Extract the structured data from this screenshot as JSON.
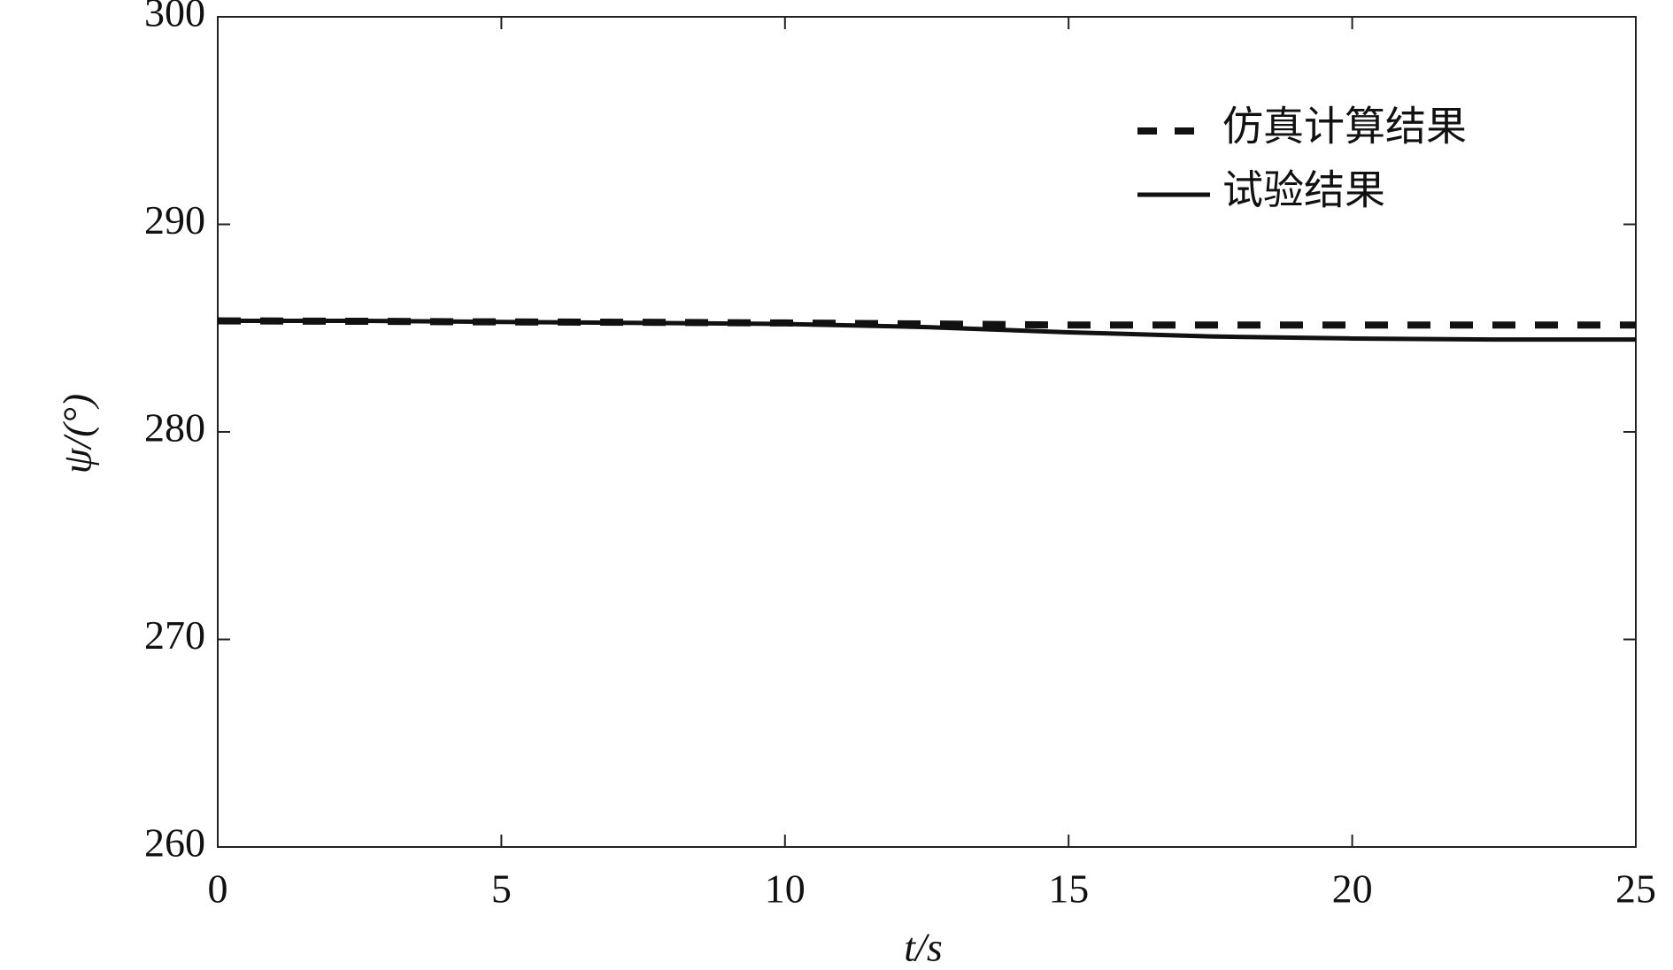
{
  "chart_data": {
    "type": "line",
    "x_label": "t/s",
    "y_label": "ψ/(°)",
    "x": [
      0,
      2.5,
      5,
      7.5,
      10,
      12.5,
      15,
      17.5,
      20,
      22.5,
      25
    ],
    "series": [
      {
        "name": "仿真计算结果",
        "color": "#111111",
        "dash": true,
        "values": [
          285.35,
          285.33,
          285.3,
          285.28,
          285.25,
          285.2,
          285.15,
          285.15,
          285.15,
          285.15,
          285.15
        ]
      },
      {
        "name": "试验结果",
        "color": "#111111",
        "dash": false,
        "values": [
          285.35,
          285.35,
          285.3,
          285.25,
          285.2,
          285.05,
          284.8,
          284.6,
          284.5,
          284.45,
          284.45
        ]
      }
    ],
    "xlim": [
      0,
      25
    ],
    "xticks": [
      0,
      5,
      10,
      15,
      20,
      25
    ],
    "ylim": [
      260,
      300
    ],
    "yticks": [
      260,
      270,
      280,
      290,
      300
    ],
    "grid": false,
    "legend": "upper right"
  }
}
